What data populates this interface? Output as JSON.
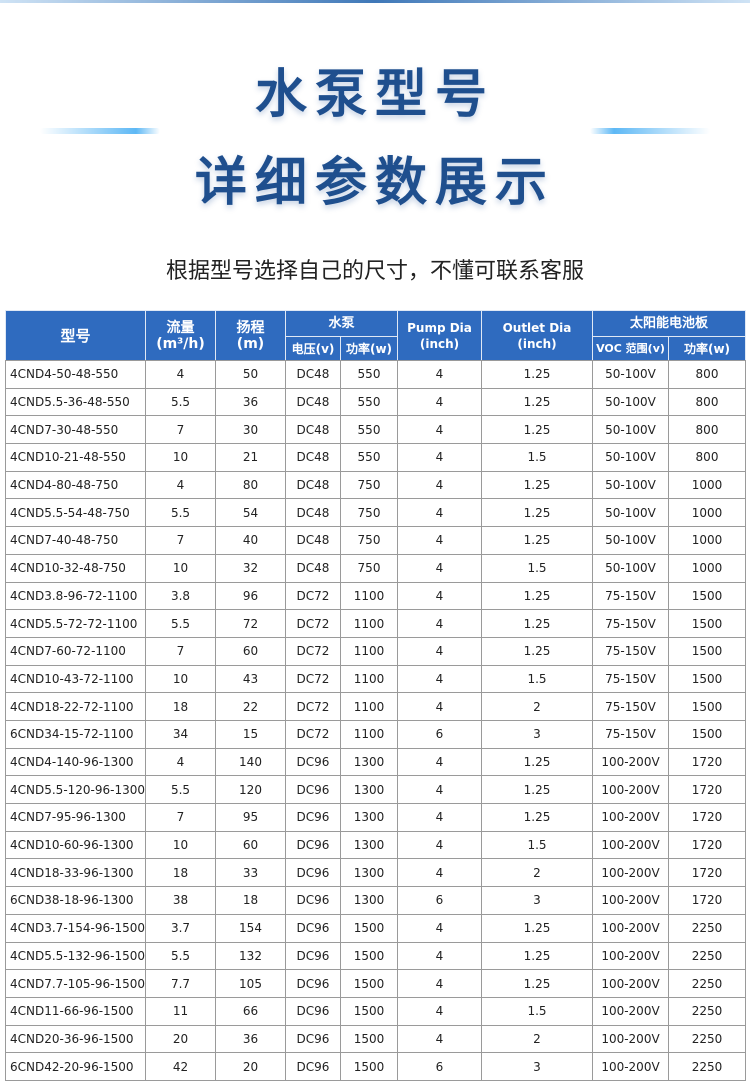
{
  "header": {
    "title_line1": "水泵型号",
    "title_line2": "详细参数展示",
    "subtitle": "根据型号选择自己的尺寸，不懂可联系客服"
  },
  "table": {
    "header": {
      "model": "型号",
      "flow": [
        "流量",
        "(m³/h)"
      ],
      "head": [
        "扬程",
        "(m)"
      ],
      "pump": "水泵",
      "voltage": "电压(v)",
      "power": "功率(w)",
      "pump_dia": [
        "Pump Dia",
        "(inch)"
      ],
      "outlet_dia": [
        "Outlet Dia",
        "(inch)"
      ],
      "solar": "太阳能电池板",
      "voc": "VOC 范围(v)",
      "solar_power": "功率(w)"
    },
    "rows": [
      [
        "4CND4-50-48-550",
        "4",
        "50",
        "DC48",
        "550",
        "4",
        "1.25",
        "50-100V",
        "800"
      ],
      [
        "4CND5.5-36-48-550",
        "5.5",
        "36",
        "DC48",
        "550",
        "4",
        "1.25",
        "50-100V",
        "800"
      ],
      [
        "4CND7-30-48-550",
        "7",
        "30",
        "DC48",
        "550",
        "4",
        "1.25",
        "50-100V",
        "800"
      ],
      [
        "4CND10-21-48-550",
        "10",
        "21",
        "DC48",
        "550",
        "4",
        "1.5",
        "50-100V",
        "800"
      ],
      [
        "4CND4-80-48-750",
        "4",
        "80",
        "DC48",
        "750",
        "4",
        "1.25",
        "50-100V",
        "1000"
      ],
      [
        "4CND5.5-54-48-750",
        "5.5",
        "54",
        "DC48",
        "750",
        "4",
        "1.25",
        "50-100V",
        "1000"
      ],
      [
        "4CND7-40-48-750",
        "7",
        "40",
        "DC48",
        "750",
        "4",
        "1.25",
        "50-100V",
        "1000"
      ],
      [
        "4CND10-32-48-750",
        "10",
        "32",
        "DC48",
        "750",
        "4",
        "1.5",
        "50-100V",
        "1000"
      ],
      [
        "4CND3.8-96-72-1100",
        "3.8",
        "96",
        "DC72",
        "1100",
        "4",
        "1.25",
        "75-150V",
        "1500"
      ],
      [
        "4CND5.5-72-72-1100",
        "5.5",
        "72",
        "DC72",
        "1100",
        "4",
        "1.25",
        "75-150V",
        "1500"
      ],
      [
        "4CND7-60-72-1100",
        "7",
        "60",
        "DC72",
        "1100",
        "4",
        "1.25",
        "75-150V",
        "1500"
      ],
      [
        "4CND10-43-72-1100",
        "10",
        "43",
        "DC72",
        "1100",
        "4",
        "1.5",
        "75-150V",
        "1500"
      ],
      [
        "4CND18-22-72-1100",
        "18",
        "22",
        "DC72",
        "1100",
        "4",
        "2",
        "75-150V",
        "1500"
      ],
      [
        "6CND34-15-72-1100",
        "34",
        "15",
        "DC72",
        "1100",
        "6",
        "3",
        "75-150V",
        "1500"
      ],
      [
        "4CND4-140-96-1300",
        "4",
        "140",
        "DC96",
        "1300",
        "4",
        "1.25",
        "100-200V",
        "1720"
      ],
      [
        "4CND5.5-120-96-1300",
        "5.5",
        "120",
        "DC96",
        "1300",
        "4",
        "1.25",
        "100-200V",
        "1720"
      ],
      [
        "4CND7-95-96-1300",
        "7",
        "95",
        "DC96",
        "1300",
        "4",
        "1.25",
        "100-200V",
        "1720"
      ],
      [
        "4CND10-60-96-1300",
        "10",
        "60",
        "DC96",
        "1300",
        "4",
        "1.5",
        "100-200V",
        "1720"
      ],
      [
        "4CND18-33-96-1300",
        "18",
        "33",
        "DC96",
        "1300",
        "4",
        "2",
        "100-200V",
        "1720"
      ],
      [
        "6CND38-18-96-1300",
        "38",
        "18",
        "DC96",
        "1300",
        "6",
        "3",
        "100-200V",
        "1720"
      ],
      [
        "4CND3.7-154-96-1500",
        "3.7",
        "154",
        "DC96",
        "1500",
        "4",
        "1.25",
        "100-200V",
        "2250"
      ],
      [
        "4CND5.5-132-96-1500",
        "5.5",
        "132",
        "DC96",
        "1500",
        "4",
        "1.25",
        "100-200V",
        "2250"
      ],
      [
        "4CND7.7-105-96-1500",
        "7.7",
        "105",
        "DC96",
        "1500",
        "4",
        "1.25",
        "100-200V",
        "2250"
      ],
      [
        "4CND11-66-96-1500",
        "11",
        "66",
        "DC96",
        "1500",
        "4",
        "1.5",
        "100-200V",
        "2250"
      ],
      [
        "4CND20-36-96-1500",
        "20",
        "36",
        "DC96",
        "1500",
        "4",
        "2",
        "100-200V",
        "2250"
      ],
      [
        "6CND42-20-96-1500",
        "42",
        "20",
        "DC96",
        "1500",
        "6",
        "3",
        "100-200V",
        "2250"
      ]
    ]
  }
}
